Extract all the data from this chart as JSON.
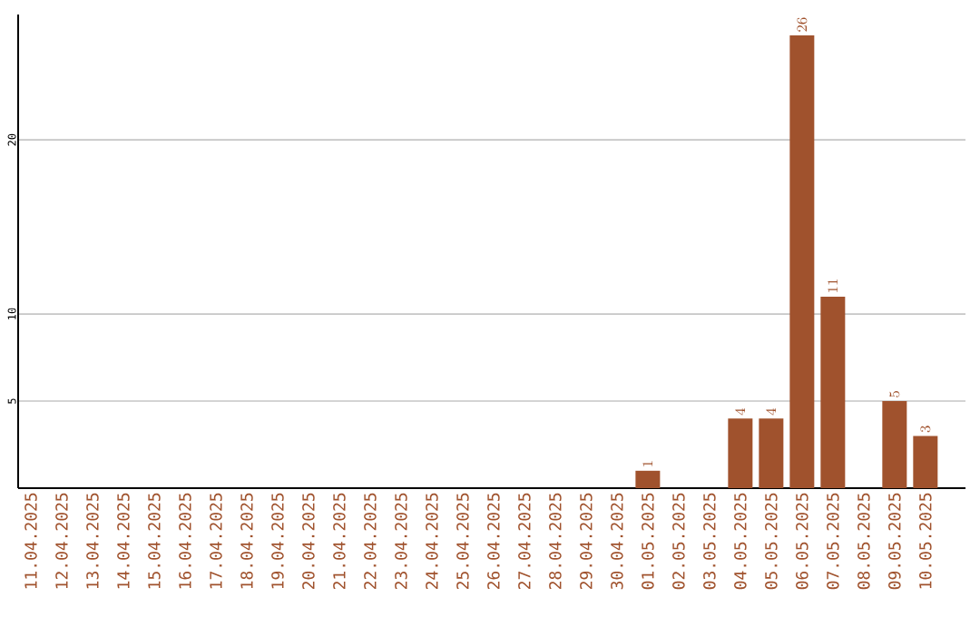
{
  "chart_data": {
    "type": "bar",
    "categories": [
      "11.04.2025",
      "12.04.2025",
      "13.04.2025",
      "14.04.2025",
      "15.04.2025",
      "16.04.2025",
      "17.04.2025",
      "18.04.2025",
      "19.04.2025",
      "20.04.2025",
      "21.04.2025",
      "22.04.2025",
      "23.04.2025",
      "24.04.2025",
      "25.04.2025",
      "26.04.2025",
      "27.04.2025",
      "28.04.2025",
      "29.04.2025",
      "30.04.2025",
      "01.05.2025",
      "02.05.2025",
      "03.05.2025",
      "04.05.2025",
      "05.05.2025",
      "06.05.2025",
      "07.05.2025",
      "08.05.2025",
      "09.05.2025",
      "10.05.2025"
    ],
    "values": [
      null,
      null,
      null,
      null,
      null,
      null,
      null,
      null,
      null,
      null,
      null,
      null,
      null,
      null,
      null,
      null,
      null,
      null,
      null,
      null,
      1,
      null,
      null,
      4,
      4,
      26,
      11,
      null,
      5,
      3
    ],
    "color": "#a0522d",
    "ylim": [
      0,
      27.2
    ],
    "yticks": [
      5,
      10,
      20
    ],
    "grid": "y",
    "data_labels": true
  }
}
